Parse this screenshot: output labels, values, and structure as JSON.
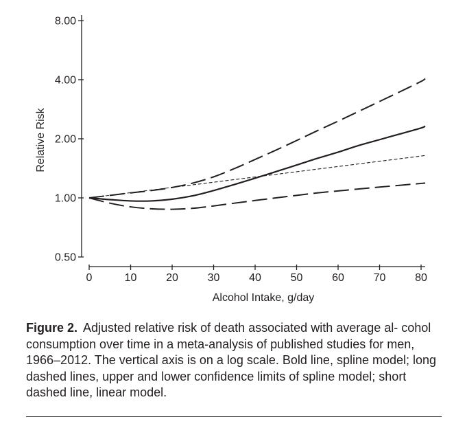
{
  "chart_data": {
    "type": "line",
    "scale_y": "log",
    "xlabel": "Alcohol Intake, g/day",
    "ylabel": "Relative Risk",
    "xlim": [
      0,
      80
    ],
    "ylim": [
      0.5,
      8.0
    ],
    "x_ticks": [
      "0",
      "10",
      "20",
      "30",
      "40",
      "50",
      "60",
      "70",
      "80"
    ],
    "y_ticks": [
      "0.50",
      "1.00",
      "2.00",
      "4.00",
      "8.00"
    ],
    "x": [
      0,
      5,
      10,
      15,
      20,
      25,
      30,
      35,
      40,
      45,
      50,
      55,
      60,
      65,
      70,
      75,
      80,
      81
    ],
    "series": [
      {
        "name": "Spline model",
        "style": "bold solid",
        "values": [
          1.0,
          0.98,
          0.965,
          0.965,
          0.985,
          1.025,
          1.09,
          1.17,
          1.26,
          1.36,
          1.47,
          1.59,
          1.71,
          1.85,
          1.98,
          2.12,
          2.27,
          2.32
        ]
      },
      {
        "name": "Upper confidence limit",
        "style": "long dashed",
        "values": [
          1.0,
          1.03,
          1.06,
          1.09,
          1.13,
          1.19,
          1.28,
          1.41,
          1.57,
          1.75,
          1.96,
          2.2,
          2.46,
          2.76,
          3.1,
          3.48,
          3.92,
          4.05
        ]
      },
      {
        "name": "Lower confidence limit",
        "style": "long dashed",
        "values": [
          1.0,
          0.94,
          0.9,
          0.88,
          0.875,
          0.885,
          0.91,
          0.94,
          0.97,
          1.0,
          1.03,
          1.06,
          1.085,
          1.11,
          1.135,
          1.16,
          1.185,
          1.19
        ]
      },
      {
        "name": "Linear model",
        "style": "short dashed",
        "values": [
          1.0,
          1.0312,
          1.0633,
          1.0964,
          1.1306,
          1.1658,
          1.2021,
          1.2396,
          1.2782,
          1.318,
          1.3591,
          1.4014,
          1.4451,
          1.4901,
          1.5365,
          1.5844,
          1.6337,
          1.6438
        ]
      }
    ]
  },
  "caption": {
    "label": "Figure 2.",
    "text": "Adjusted relative risk of death associated with average al- cohol consumption over time in a meta-analysis of published studies for men, 1966–2012. The vertical axis is on a log scale. Bold line, spline model; long dashed lines, upper and lower confidence limits of spline model; short dashed line, linear model."
  }
}
